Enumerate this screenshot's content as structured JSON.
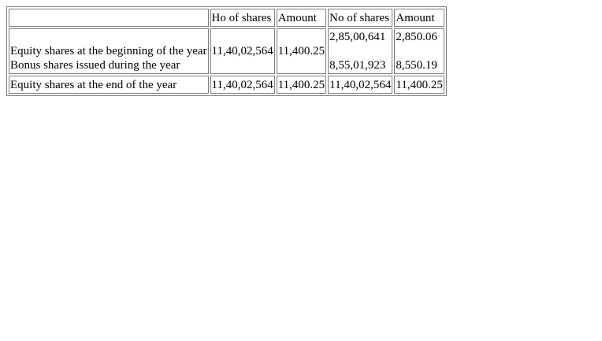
{
  "table": {
    "headers": [
      "",
      "Ho of shares",
      "Amount",
      "No of shares",
      "Amount"
    ],
    "rows": {
      "opening": {
        "label": "Equity shares at the beginning of the year",
        "current_shares": "11,40,02,564",
        "current_amount": "11,400.25",
        "prior_shares": "2,85,00,641",
        "prior_amount": "2,850.06"
      },
      "bonus": {
        "label": "Bonus shares issued during the year",
        "prior_shares": "8,55,01,923",
        "prior_amount": "8,550.19"
      },
      "closing": {
        "label": "Equity shares at the end of the year",
        "current_shares": "11,40,02,564",
        "current_amount": "11,400.25",
        "prior_shares": "11,40,02,564",
        "prior_amount": "11,400.25"
      }
    }
  }
}
